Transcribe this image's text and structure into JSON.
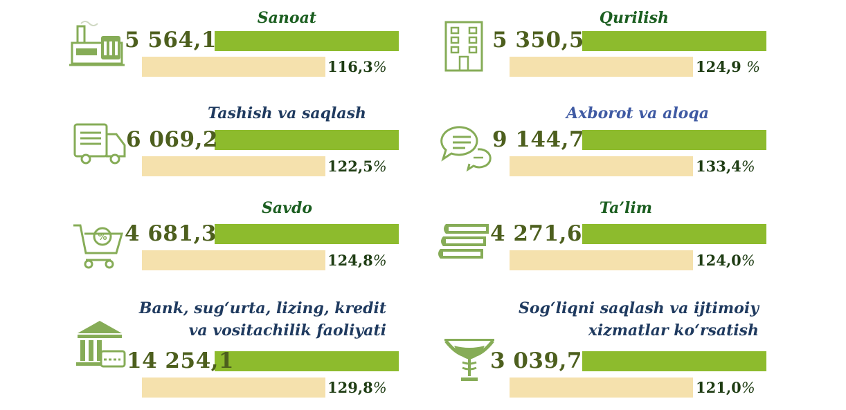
{
  "colors": {
    "value_bar": "#8dbb2d",
    "growth_bar": "#f5e1ad",
    "value_text": "#4d5f1e",
    "percent_text": "#1f3d14",
    "icon": "#86ac57",
    "title_green": "#1b5e20",
    "title_blue": "#3f5aa3",
    "title_navy": "#1f3a5f"
  },
  "chart_data": {
    "type": "bar",
    "categories": [
      "Sanoat",
      "Qurilish",
      "Tashish va saqlash",
      "Axborot va aloqa",
      "Savdo",
      "Ta’lim",
      "Bank, sug‘urta, lizing, kredit va vositachilik faoliyati",
      "Sog‘liqni saqlash va ijtimoiy xizmatlar ko‘rsatish"
    ],
    "items": [
      {
        "title_lines": [
          "Sanoat"
        ],
        "title_color": "#1b5e20",
        "value": 5564.1,
        "value_label": "5 564,1",
        "growth": 116.3,
        "growth_label": "116,3",
        "growth_sign": "%",
        "icon": "factory-icon"
      },
      {
        "title_lines": [
          "Qurilish"
        ],
        "title_color": "#1b5e20",
        "value": 5350.5,
        "value_label": "5 350,5",
        "growth": 124.9,
        "growth_label": "124,9 ",
        "growth_sign": "%",
        "icon": "building-icon"
      },
      {
        "title_lines": [
          "Tashish va saqlash"
        ],
        "title_color": "#1f3a5f",
        "value": 6069.2,
        "value_label": "6 069,2",
        "growth": 122.5,
        "growth_label": "122,5",
        "growth_sign": "%",
        "icon": "truck-icon"
      },
      {
        "title_lines": [
          "Axborot va aloqa"
        ],
        "title_color": "#3f5aa3",
        "value": 9144.7,
        "value_label": "9 144,7",
        "growth": 133.4,
        "growth_label": "133,4",
        "growth_sign": "%",
        "icon": "chat-bubbles-icon"
      },
      {
        "title_lines": [
          "Savdo"
        ],
        "title_color": "#1b5e20",
        "value": 4681.3,
        "value_label": "4 681,3",
        "growth": 124.8,
        "growth_label": "124,8",
        "growth_sign": "%",
        "icon": "shopping-cart-icon"
      },
      {
        "title_lines": [
          "Ta’lim"
        ],
        "title_color": "#1b5e20",
        "value": 4271.6,
        "value_label": "4 271,6",
        "growth": 124.0,
        "growth_label": "124,0",
        "growth_sign": "%",
        "icon": "books-icon"
      },
      {
        "title_lines": [
          "Bank, sug‘urta, lizing, kredit",
          "va vositachilik faoliyati"
        ],
        "title_color": "#1f3a5f",
        "value": 14254.1,
        "value_label": "14 254,1",
        "growth": 129.8,
        "growth_label": "129,8",
        "growth_sign": "%",
        "icon": "bank-icon"
      },
      {
        "title_lines": [
          "Sog‘liqni saqlash va ijtimoiy",
          "xizmatlar ko‘rsatish"
        ],
        "title_color": "#1f3a5f",
        "value": 3039.7,
        "value_label": "3 039,7",
        "growth": 121.0,
        "growth_label": "121,0",
        "growth_sign": "%",
        "icon": "medical-caduceus-icon"
      }
    ]
  }
}
